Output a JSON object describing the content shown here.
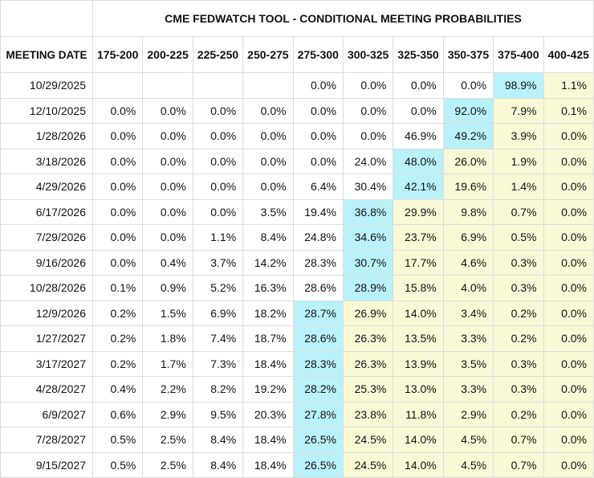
{
  "table": {
    "title": "CME FEDWATCH TOOL - CONDITIONAL MEETING PROBABILITIES",
    "header": [
      "MEETING DATE",
      "175-200",
      "200-225",
      "225-250",
      "250-275",
      "275-300",
      "300-325",
      "325-350",
      "350-375",
      "375-400",
      "400-425"
    ],
    "highlight": {
      "max": "#b9f1f8",
      "above_max": "#f9f9d7"
    },
    "rows": [
      [
        "10/29/2025",
        null,
        null,
        null,
        null,
        "0.0%",
        "0.0%",
        "0.0%",
        "0.0%",
        "98.9%",
        "1.1%"
      ],
      [
        "12/10/2025",
        "0.0%",
        "0.0%",
        "0.0%",
        "0.0%",
        "0.0%",
        "0.0%",
        "0.0%",
        "92.0%",
        "7.9%",
        "0.1%"
      ],
      [
        "1/28/2026",
        "0.0%",
        "0.0%",
        "0.0%",
        "0.0%",
        "0.0%",
        "0.0%",
        "46.9%",
        "49.2%",
        "3.9%",
        "0.0%"
      ],
      [
        "3/18/2026",
        "0.0%",
        "0.0%",
        "0.0%",
        "0.0%",
        "0.0%",
        "24.0%",
        "48.0%",
        "26.0%",
        "1.9%",
        "0.0%"
      ],
      [
        "4/29/2026",
        "0.0%",
        "0.0%",
        "0.0%",
        "0.0%",
        "6.4%",
        "30.4%",
        "42.1%",
        "19.6%",
        "1.4%",
        "0.0%"
      ],
      [
        "6/17/2026",
        "0.0%",
        "0.0%",
        "0.0%",
        "3.5%",
        "19.4%",
        "36.8%",
        "29.9%",
        "9.8%",
        "0.7%",
        "0.0%"
      ],
      [
        "7/29/2026",
        "0.0%",
        "0.0%",
        "1.1%",
        "8.4%",
        "24.8%",
        "34.6%",
        "23.7%",
        "6.9%",
        "0.5%",
        "0.0%"
      ],
      [
        "9/16/2026",
        "0.0%",
        "0.4%",
        "3.7%",
        "14.2%",
        "28.3%",
        "30.7%",
        "17.7%",
        "4.6%",
        "0.3%",
        "0.0%"
      ],
      [
        "10/28/2026",
        "0.1%",
        "0.9%",
        "5.2%",
        "16.3%",
        "28.6%",
        "28.9%",
        "15.8%",
        "4.0%",
        "0.3%",
        "0.0%"
      ],
      [
        "12/9/2026",
        "0.2%",
        "1.5%",
        "6.9%",
        "18.2%",
        "28.7%",
        "26.9%",
        "14.0%",
        "3.4%",
        "0.2%",
        "0.0%"
      ],
      [
        "1/27/2027",
        "0.2%",
        "1.8%",
        "7.4%",
        "18.7%",
        "28.6%",
        "26.3%",
        "13.5%",
        "3.3%",
        "0.2%",
        "0.0%"
      ],
      [
        "3/17/2027",
        "0.2%",
        "1.7%",
        "7.3%",
        "18.4%",
        "28.3%",
        "26.3%",
        "13.9%",
        "3.5%",
        "0.3%",
        "0.0%"
      ],
      [
        "4/28/2027",
        "0.4%",
        "2.2%",
        "8.2%",
        "19.2%",
        "28.2%",
        "25.3%",
        "13.0%",
        "3.3%",
        "0.3%",
        "0.0%"
      ],
      [
        "6/9/2027",
        "0.6%",
        "2.9%",
        "9.5%",
        "20.3%",
        "27.8%",
        "23.8%",
        "11.8%",
        "2.9%",
        "0.2%",
        "0.0%"
      ],
      [
        "7/28/2027",
        "0.5%",
        "2.5%",
        "8.4%",
        "18.4%",
        "26.5%",
        "24.5%",
        "14.0%",
        "4.5%",
        "0.7%",
        "0.0%"
      ],
      [
        "9/15/2027",
        "0.5%",
        "2.5%",
        "8.4%",
        "18.4%",
        "26.5%",
        "24.5%",
        "14.0%",
        "4.5%",
        "0.7%",
        "0.0%"
      ]
    ]
  }
}
